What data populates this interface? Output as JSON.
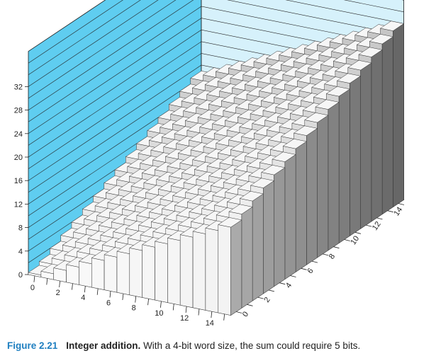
{
  "colors": {
    "back_wall": "#5fcdf0",
    "side_wall": "#d6f1fb",
    "wall_line": "#1a1a1a",
    "bar_top": "#f6f6f6",
    "caption_accent": "#1f7fc0"
  },
  "caption": {
    "figure_label": "Figure 2.21",
    "title": "Integer addition.",
    "text": "With a 4-bit word size, the sum could require 5 bits."
  },
  "chart_data": {
    "type": "bar3d",
    "title": "",
    "x": [
      0,
      1,
      2,
      3,
      4,
      5,
      6,
      7,
      8,
      9,
      10,
      11,
      12,
      13,
      14,
      15
    ],
    "y": [
      0,
      1,
      2,
      3,
      4,
      5,
      6,
      7,
      8,
      9,
      10,
      11,
      12,
      13,
      14,
      15
    ],
    "z_formula": "x + y",
    "x_ticks": [
      "0",
      "2",
      "4",
      "6",
      "8",
      "10",
      "12",
      "14"
    ],
    "y_ticks": [
      "0",
      "2",
      "4",
      "6",
      "8",
      "10",
      "12",
      "14"
    ],
    "z_ticks": [
      "0",
      "4",
      "8",
      "12",
      "16",
      "20",
      "24",
      "28",
      "32"
    ],
    "zlim": [
      0,
      32
    ],
    "grid": true
  }
}
